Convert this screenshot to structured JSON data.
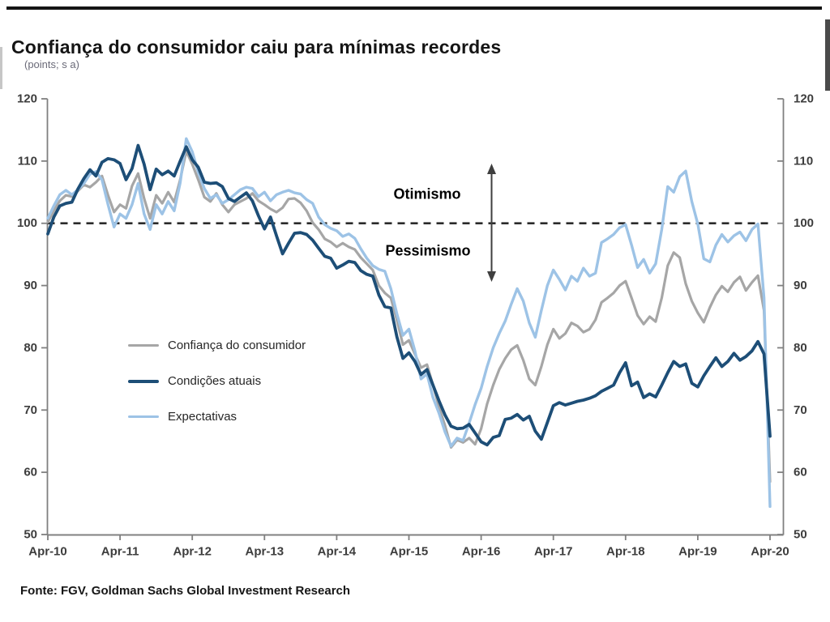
{
  "page": {
    "title": "Confiança do consumidor caiu para mínimas recordes",
    "subtitle": "(points; s a)",
    "footer": "Fonte: FGV, Goldman Sachs Global Investment Research"
  },
  "annotations": {
    "optimism": "Otimismo",
    "pessimism": "Pessimismo"
  },
  "chart_data": {
    "type": "line",
    "title": "Confiança do consumidor caiu para mínimas recordes",
    "ylabel": "(points; s a)",
    "ylim": [
      50,
      120
    ],
    "y_ticks": [
      50,
      60,
      70,
      80,
      90,
      100,
      110,
      120
    ],
    "x_tick_labels": [
      "Apr-10",
      "Apr-11",
      "Apr-12",
      "Apr-13",
      "Apr-14",
      "Apr-15",
      "Apr-16",
      "Apr-17",
      "Apr-18",
      "Apr-19",
      "Apr-20"
    ],
    "x_frequency": "monthly",
    "x_range": [
      "Apr-2010",
      "Apr-2020"
    ],
    "grid": false,
    "legend_position": "inside-left",
    "reference_line": {
      "value": 100,
      "style": "dashed",
      "color": "#2b2b2b"
    },
    "axis_color": "#808080",
    "tick_text_color": "#3d3d3d",
    "series": [
      {
        "name": "Confiança do consumidor",
        "color": "#a6a6a6",
        "width": 3.2,
        "values": [
          100.2,
          102.0,
          103.6,
          104.5,
          104.3,
          105.2,
          106.2,
          105.8,
          106.6,
          107.6,
          104.5,
          101.8,
          103.0,
          102.4,
          106.0,
          108.0,
          104.0,
          100.8,
          104.5,
          103.2,
          105.0,
          103.4,
          107.0,
          111.6,
          109.5,
          107.0,
          104.2,
          103.5,
          104.8,
          103.0,
          101.8,
          103.0,
          103.5,
          104.0,
          104.8,
          103.6,
          103.0,
          102.3,
          101.8,
          102.5,
          103.9,
          104.0,
          103.3,
          102.0,
          100.1,
          99.0,
          97.5,
          97.0,
          96.2,
          96.8,
          96.2,
          95.8,
          94.5,
          93.5,
          92.5,
          90.0,
          88.8,
          88.0,
          84.5,
          80.5,
          81.2,
          79.0,
          76.8,
          77.3,
          74.0,
          70.5,
          67.5,
          64.0,
          65.2,
          64.8,
          65.5,
          64.5,
          67.0,
          71.0,
          74.0,
          76.5,
          78.3,
          79.7,
          80.4,
          78.0,
          75.0,
          74.0,
          77.0,
          80.5,
          83.0,
          81.5,
          82.3,
          84.0,
          83.5,
          82.5,
          83.0,
          84.5,
          87.3,
          88.0,
          88.8,
          90.0,
          90.7,
          88.0,
          85.2,
          83.8,
          85.0,
          84.2,
          88.0,
          93.2,
          95.3,
          94.5,
          90.3,
          87.5,
          85.6,
          84.1,
          86.5,
          88.5,
          89.9,
          89.0,
          90.5,
          91.4,
          89.2,
          90.5,
          91.6,
          86.0,
          58.5
        ]
      },
      {
        "name": "Condições atuais",
        "color": "#1d4e77",
        "width": 3.8,
        "values": [
          98.3,
          101.0,
          102.8,
          103.2,
          103.4,
          105.5,
          107.2,
          108.6,
          107.6,
          109.8,
          110.4,
          110.2,
          109.6,
          107.0,
          108.8,
          112.5,
          109.5,
          105.4,
          108.7,
          107.8,
          108.4,
          107.6,
          110.0,
          112.3,
          110.2,
          109.0,
          106.6,
          106.4,
          106.5,
          105.9,
          104.0,
          103.5,
          104.2,
          104.9,
          103.6,
          101.2,
          99.1,
          101.0,
          98.0,
          95.1,
          96.8,
          98.4,
          98.5,
          98.2,
          97.3,
          96.0,
          94.7,
          94.4,
          92.8,
          93.3,
          93.9,
          93.7,
          92.4,
          91.8,
          91.5,
          88.5,
          86.6,
          86.4,
          81.8,
          78.3,
          79.2,
          77.8,
          75.7,
          76.5,
          74.0,
          71.5,
          69.2,
          67.4,
          67.0,
          67.1,
          67.7,
          66.3,
          64.9,
          64.4,
          65.6,
          65.9,
          68.5,
          68.7,
          69.3,
          68.4,
          69.0,
          66.6,
          65.3,
          68.0,
          70.7,
          71.2,
          70.8,
          71.1,
          71.4,
          71.6,
          71.9,
          72.3,
          73.0,
          73.5,
          74.0,
          76.0,
          77.6,
          73.9,
          74.5,
          72.0,
          72.6,
          72.1,
          74.0,
          76.0,
          77.8,
          77.0,
          77.4,
          74.3,
          73.7,
          75.5,
          77.0,
          78.4,
          77.0,
          77.8,
          79.1,
          78.0,
          78.6,
          79.5,
          81.0,
          79.0,
          65.8
        ]
      },
      {
        "name": "Expectativas",
        "color": "#9dc3e6",
        "width": 3.4,
        "values": [
          100.8,
          102.8,
          104.6,
          105.3,
          104.6,
          105.4,
          106.4,
          107.9,
          108.3,
          107.0,
          103.0,
          99.4,
          101.5,
          100.8,
          103.0,
          106.4,
          101.5,
          99.0,
          103.0,
          101.5,
          103.5,
          102.0,
          106.5,
          113.6,
          111.5,
          108.2,
          105.6,
          104.0,
          104.6,
          103.2,
          103.8,
          104.6,
          105.4,
          105.8,
          105.6,
          104.3,
          105.0,
          103.6,
          104.6,
          105.0,
          105.3,
          104.9,
          104.7,
          103.8,
          103.2,
          101.0,
          99.8,
          99.2,
          98.8,
          97.9,
          98.3,
          97.6,
          95.9,
          94.4,
          93.2,
          92.6,
          92.3,
          89.5,
          85.5,
          82.0,
          83.0,
          79.5,
          75.0,
          75.8,
          72.0,
          69.5,
          66.5,
          64.2,
          65.5,
          65.1,
          67.9,
          70.9,
          73.5,
          77.0,
          80.0,
          82.3,
          84.3,
          87.0,
          89.5,
          87.5,
          84.0,
          81.7,
          86.0,
          90.0,
          92.5,
          91.0,
          89.3,
          91.5,
          90.7,
          92.8,
          91.5,
          92.0,
          96.9,
          97.5,
          98.2,
          99.3,
          99.8,
          96.5,
          92.9,
          94.2,
          92.0,
          93.5,
          99.0,
          105.9,
          105.0,
          107.5,
          108.4,
          103.5,
          99.9,
          94.3,
          93.8,
          96.5,
          98.2,
          97.0,
          98.0,
          98.6,
          97.2,
          99.0,
          99.9,
          88.0,
          54.5
        ]
      }
    ]
  }
}
